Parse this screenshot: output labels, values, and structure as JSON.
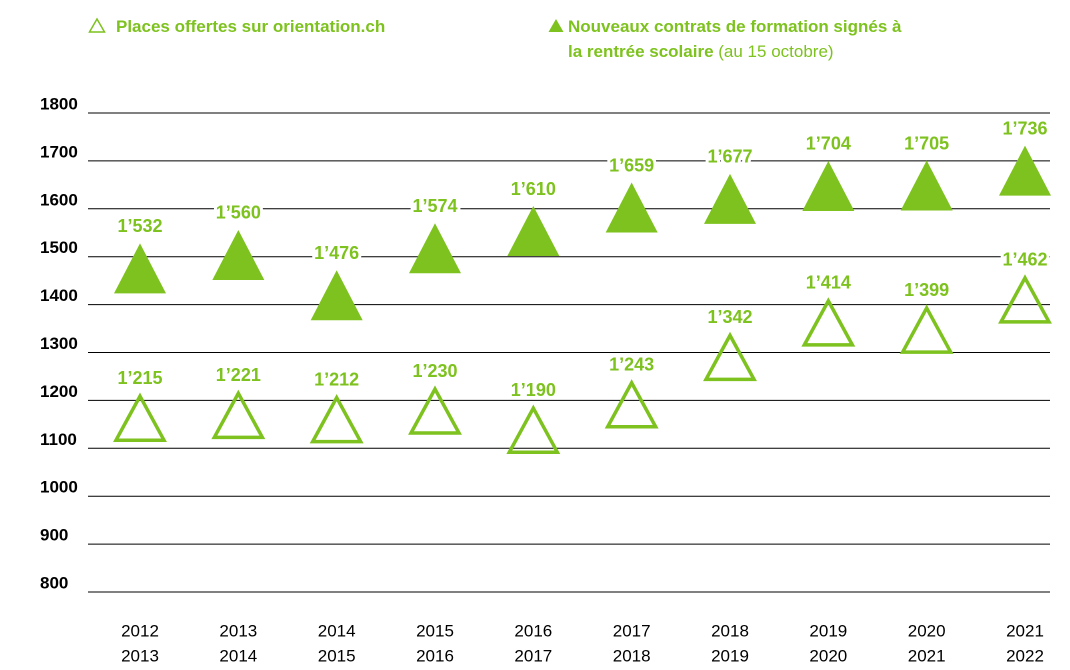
{
  "chart_data": {
    "type": "scatter",
    "categories": [
      [
        "2012",
        "2013"
      ],
      [
        "2013",
        "2014"
      ],
      [
        "2014",
        "2015"
      ],
      [
        "2015",
        "2016"
      ],
      [
        "2016",
        "2017"
      ],
      [
        "2017",
        "2018"
      ],
      [
        "2018",
        "2019"
      ],
      [
        "2019",
        "2020"
      ],
      [
        "2020",
        "2021"
      ],
      [
        "2021",
        "2022"
      ]
    ],
    "series": [
      {
        "name": "Places offertes sur orientation.ch",
        "color": "#7dc21e",
        "marker": "open-triangle",
        "values": [
          1215,
          1221,
          1212,
          1230,
          1190,
          1243,
          1342,
          1414,
          1399,
          1462
        ],
        "value_labels": [
          "1’215",
          "1’221",
          "1’212",
          "1’230",
          "1’190",
          "1’243",
          "1’342",
          "1’414",
          "1’399",
          "1’462"
        ]
      },
      {
        "name": "Nouveaux contrats de formation signés à la rentrée scolaire",
        "name_suffix": "(au 15 octobre)",
        "color": "#7dc21e",
        "marker": "filled-triangle",
        "values": [
          1532,
          1560,
          1476,
          1574,
          1610,
          1659,
          1677,
          1704,
          1705,
          1736
        ],
        "value_labels": [
          "1’532",
          "1’560",
          "1’476",
          "1’574",
          "1’610",
          "1’659",
          "1’677",
          "1’704",
          "1’705",
          "1’736"
        ]
      }
    ],
    "ylim": [
      800,
      1800
    ],
    "yticks": [
      800,
      900,
      1000,
      1100,
      1200,
      1300,
      1400,
      1500,
      1600,
      1700,
      1800
    ],
    "grid": true
  }
}
